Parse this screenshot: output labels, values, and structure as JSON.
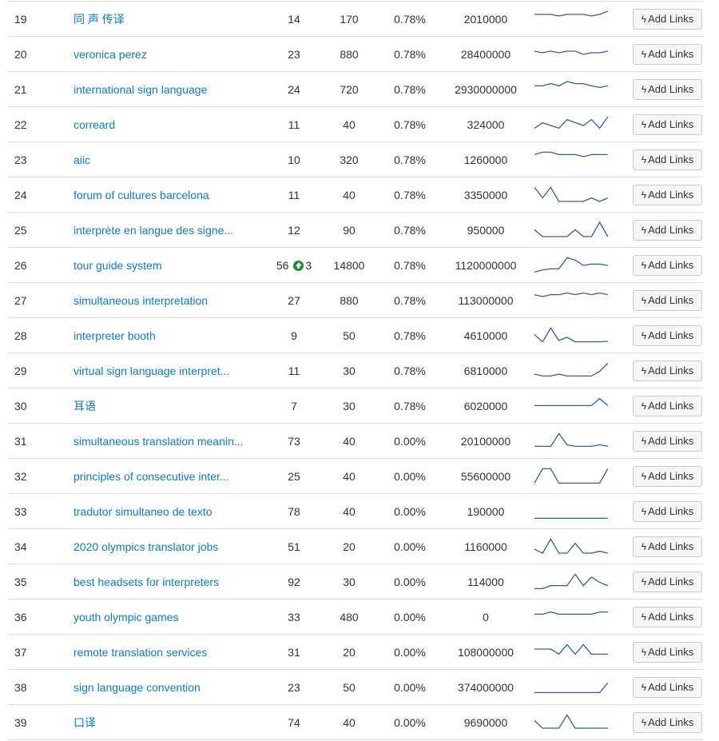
{
  "button_label": "Add Links",
  "icons": {
    "button": "bolt-icon",
    "rank_up": "arrow-up-circle-icon"
  },
  "colors": {
    "link": "#0d7bbf",
    "sparkline": "#2f6190",
    "rank_up": "#1e8c2e"
  },
  "rows": [
    {
      "rank": "19",
      "keyword": "同 声 传译",
      "position": "14",
      "volume": "170",
      "share": "0.78%",
      "results": "2010000",
      "trend": [
        8,
        8,
        8,
        7,
        8,
        8,
        8,
        7,
        8,
        10
      ]
    },
    {
      "rank": "20",
      "keyword": "veronica perez",
      "position": "23",
      "volume": "880",
      "share": "0.78%",
      "results": "28400000",
      "trend": [
        7,
        6,
        7,
        6,
        7,
        7,
        5,
        6,
        6,
        7
      ]
    },
    {
      "rank": "21",
      "keyword": "international sign language",
      "position": "24",
      "volume": "720",
      "share": "0.78%",
      "results": "2930000000",
      "trend": [
        7.3,
        7.3,
        8.7,
        7.3,
        10,
        8.7,
        8.7,
        7.3,
        6.3,
        7.3
      ]
    },
    {
      "rank": "22",
      "keyword": "correard",
      "position": "11",
      "volume": "40",
      "share": "0.78%",
      "results": "324000",
      "trend": [
        2.8,
        6.2,
        4.5,
        2.8,
        8.2,
        6.3,
        4.5,
        8.2,
        2.8,
        9.8
      ]
    },
    {
      "rank": "23",
      "keyword": "aiic",
      "position": "10",
      "volume": "320",
      "share": "0.78%",
      "results": "1260000",
      "trend": [
        8.3,
        9.8,
        9.8,
        8.3,
        8.3,
        8.3,
        7,
        8.3,
        8.3,
        8.3
      ]
    },
    {
      "rank": "24",
      "keyword": "forum of cultures barcelona",
      "position": "11",
      "volume": "40",
      "share": "0.78%",
      "results": "3350000",
      "trend": [
        9.8,
        3.2,
        9.8,
        1,
        1,
        1,
        1,
        3.2,
        1,
        3.2
      ]
    },
    {
      "rank": "25",
      "keyword": "interprète en langue des signe...",
      "position": "12",
      "volume": "90",
      "share": "0.78%",
      "results": "950000",
      "trend": [
        5.3,
        1,
        1,
        1,
        1,
        5.3,
        1,
        1,
        10,
        1
      ]
    },
    {
      "rank": "26",
      "keyword": "tour guide system",
      "position": "56",
      "position_change": "3",
      "volume": "14800",
      "share": "0.78%",
      "results": "1120000000",
      "trend": [
        0.8,
        2.2,
        2.8,
        2.8,
        9.8,
        8.3,
        5,
        5.8,
        5.8,
        5
      ]
    },
    {
      "rank": "27",
      "keyword": "simultaneous interpretation",
      "position": "27",
      "volume": "880",
      "share": "0.78%",
      "results": "113000000",
      "trend": [
        8.7,
        7.5,
        8.7,
        8.7,
        9.7,
        8.7,
        9.7,
        8.7,
        9.7,
        8.7
      ]
    },
    {
      "rank": "28",
      "keyword": "interpreter booth",
      "position": "9",
      "volume": "50",
      "share": "0.78%",
      "results": "4610000",
      "trend": [
        5.7,
        1.2,
        9.8,
        2,
        4,
        1.2,
        1.2,
        1.2,
        1.2,
        1.5
      ]
    },
    {
      "rank": "29",
      "keyword": "virtual sign language interpret...",
      "position": "11",
      "volume": "30",
      "share": "0.78%",
      "results": "6810000",
      "trend": [
        3,
        1.8,
        1.8,
        3,
        1.8,
        1.8,
        1.8,
        1.8,
        4.7,
        9.8
      ]
    },
    {
      "rank": "30",
      "keyword": "耳语",
      "position": "7",
      "volume": "30",
      "share": "0.78%",
      "results": "6020000",
      "trend": [
        5.3,
        5.3,
        5.3,
        5.3,
        5.3,
        5.3,
        5.3,
        5.3,
        9.7,
        5.3
      ]
    },
    {
      "rank": "31",
      "keyword": "simultaneous translation meanin...",
      "position": "73",
      "volume": "40",
      "share": "0.00%",
      "results": "20100000",
      "trend": [
        1.8,
        1.8,
        1.8,
        9.8,
        2.8,
        1.8,
        1.8,
        1.8,
        2.8,
        1.8
      ]
    },
    {
      "rank": "32",
      "keyword": "principles of consecutive inter...",
      "position": "25",
      "volume": "40",
      "share": "0.00%",
      "results": "55600000",
      "trend": [
        0.8,
        9.8,
        9.8,
        0.8,
        0.8,
        0.8,
        0.8,
        0.8,
        0.8,
        9.8
      ]
    },
    {
      "rank": "33",
      "keyword": "tradutor simultaneo de texto",
      "position": "78",
      "volume": "40",
      "share": "0.00%",
      "results": "190000",
      "trend": [
        0.8,
        0.8,
        0.8,
        0.8,
        0.8,
        0.8,
        0.8,
        0.8,
        0.8,
        0.8
      ]
    },
    {
      "rank": "34",
      "keyword": "2020 olympics translator jobs",
      "position": "51",
      "volume": "20",
      "share": "0.00%",
      "results": "1160000",
      "trend": [
        3.5,
        1,
        9.8,
        1,
        1,
        7.2,
        1,
        1,
        2.2,
        1
      ]
    },
    {
      "rank": "35",
      "keyword": "best headsets for interpreters",
      "position": "92",
      "volume": "30",
      "share": "0.00%",
      "results": "114000",
      "trend": [
        0.8,
        0.8,
        2.7,
        2.7,
        2.7,
        9.8,
        2.7,
        8,
        4.7,
        2.7
      ]
    },
    {
      "rank": "36",
      "keyword": "youth olympic games",
      "position": "33",
      "volume": "480",
      "share": "0.00%",
      "results": "0",
      "trend": [
        6.8,
        6.8,
        8.2,
        6.8,
        6.8,
        6.8,
        6.8,
        6.8,
        8.2,
        8.2
      ]
    },
    {
      "rank": "37",
      "keyword": "remote translation services",
      "position": "31",
      "volume": "20",
      "share": "0.00%",
      "results": "108000000",
      "trend": [
        7,
        7,
        7,
        3.8,
        9.8,
        3.8,
        9.8,
        3.8,
        3.8,
        3.8
      ]
    },
    {
      "rank": "38",
      "keyword": "sign language convention",
      "position": "23",
      "volume": "50",
      "share": "0.00%",
      "results": "374000000",
      "trend": [
        1.8,
        1.8,
        1.8,
        1.8,
        1.8,
        1.8,
        1.8,
        1.8,
        1.8,
        7.8
      ]
    },
    {
      "rank": "39",
      "keyword": "口译",
      "position": "74",
      "volume": "40",
      "share": "0.00%",
      "results": "9690000",
      "trend": [
        6.3,
        1.5,
        1.5,
        1.5,
        9.8,
        1.5,
        1.5,
        1.5,
        1.5,
        1.5
      ]
    }
  ]
}
